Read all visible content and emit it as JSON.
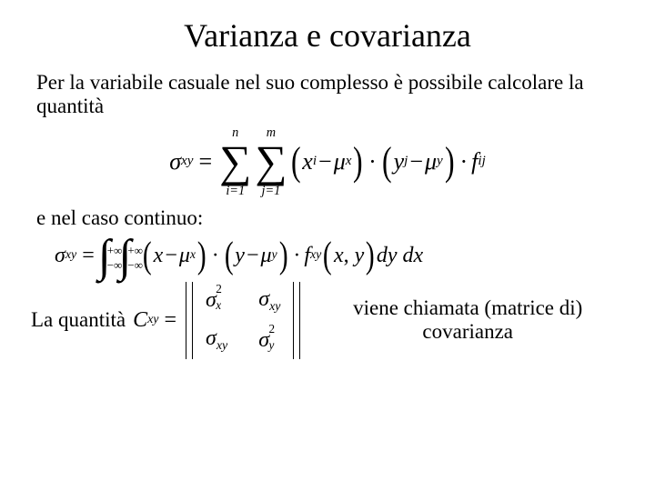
{
  "title": "Varianza e covarianza",
  "p1": "Per la variabile casuale nel suo complesso è possibile calcolare la quantità",
  "p2": "e nel caso continuo:",
  "p3_left": "La quantità",
  "p3_right": "viene chiamata (matrice di) covarianza",
  "sym": {
    "sigma": "σ",
    "mu": "μ",
    "C": "C",
    "f": "f",
    "x": "x",
    "y": "y",
    "xy": "xy",
    "i": "i",
    "j": "j",
    "ij": "ij",
    "n": "n",
    "m": "m",
    "i1": "i=1",
    "j1": "j=1",
    "dy": "dy",
    "dx": "dx",
    "two": "2",
    "pinf": "+∞",
    "minf": "−∞",
    "comma": ","
  },
  "style": {
    "text_color": "#000000",
    "background": "#ffffff",
    "title_fontsize": 36,
    "body_fontsize": 23,
    "formula1_fontsize": 26,
    "formula2_fontsize": 24,
    "matrix_fontsize": 24,
    "font_family": "Times New Roman"
  }
}
